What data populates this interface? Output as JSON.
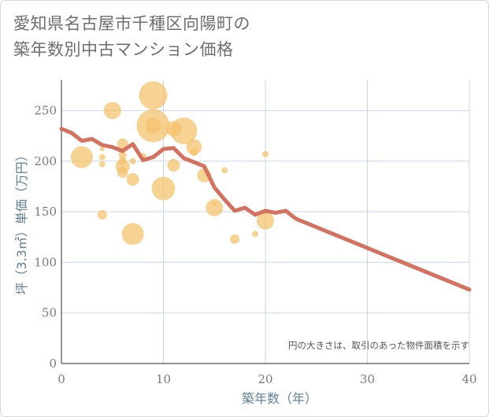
{
  "title_line1": "愛知県名古屋市千種区向陽町の",
  "title_line2": "築年数別中古マンション価格",
  "chart_data": {
    "type": "scatter",
    "xlabel": "築年数（年）",
    "ylabel": "坪（3.3㎡）単価（万円）",
    "xlim": [
      0,
      40
    ],
    "ylim": [
      0,
      280
    ],
    "xticks": [
      0,
      10,
      20,
      30,
      40
    ],
    "yticks": [
      0,
      50,
      100,
      150,
      200,
      250
    ],
    "grid": true,
    "annotation": "円の大きさは、取引のあった物件面積を示す",
    "bubble_color": "#f2c06a",
    "line_color": "#d4725f",
    "bubbles": [
      {
        "x": 2,
        "y": 204,
        "r": 14
      },
      {
        "x": 4,
        "y": 212,
        "r": 3
      },
      {
        "x": 4,
        "y": 204,
        "r": 4
      },
      {
        "x": 4,
        "y": 197,
        "r": 4
      },
      {
        "x": 4,
        "y": 147,
        "r": 6
      },
      {
        "x": 5,
        "y": 250,
        "r": 11
      },
      {
        "x": 6,
        "y": 217,
        "r": 7
      },
      {
        "x": 6,
        "y": 206,
        "r": 5
      },
      {
        "x": 6,
        "y": 200,
        "r": 5
      },
      {
        "x": 6,
        "y": 195,
        "r": 9
      },
      {
        "x": 6,
        "y": 189,
        "r": 7
      },
      {
        "x": 7,
        "y": 200,
        "r": 4
      },
      {
        "x": 7,
        "y": 182,
        "r": 8
      },
      {
        "x": 7,
        "y": 128,
        "r": 14
      },
      {
        "x": 8,
        "y": 205,
        "r": 4
      },
      {
        "x": 9,
        "y": 265,
        "r": 18
      },
      {
        "x": 9,
        "y": 235,
        "r": 21
      },
      {
        "x": 9,
        "y": 235,
        "r": 10
      },
      {
        "x": 10,
        "y": 173,
        "r": 15
      },
      {
        "x": 11,
        "y": 232,
        "r": 10
      },
      {
        "x": 11,
        "y": 196,
        "r": 8
      },
      {
        "x": 12,
        "y": 230,
        "r": 17
      },
      {
        "x": 13,
        "y": 214,
        "r": 10
      },
      {
        "x": 13,
        "y": 209,
        "r": 5
      },
      {
        "x": 14,
        "y": 186,
        "r": 9
      },
      {
        "x": 15,
        "y": 158,
        "r": 3
      },
      {
        "x": 15,
        "y": 154,
        "r": 11
      },
      {
        "x": 16,
        "y": 191,
        "r": 4
      },
      {
        "x": 17,
        "y": 123,
        "r": 6
      },
      {
        "x": 19,
        "y": 128,
        "r": 4
      },
      {
        "x": 20,
        "y": 207,
        "r": 4
      },
      {
        "x": 20,
        "y": 141,
        "r": 11
      }
    ],
    "trend": {
      "x": [
        0,
        1,
        2,
        3,
        4,
        5,
        6,
        7,
        8,
        9,
        10,
        11,
        12,
        13,
        14,
        15,
        16,
        17,
        18,
        19,
        20,
        21,
        22,
        23,
        40
      ],
      "y": [
        232,
        228,
        220,
        222,
        216,
        214,
        210,
        217,
        201,
        204,
        212,
        213,
        203,
        199,
        195,
        174,
        162,
        151,
        154,
        147,
        151,
        149,
        151,
        143,
        73
      ]
    }
  }
}
